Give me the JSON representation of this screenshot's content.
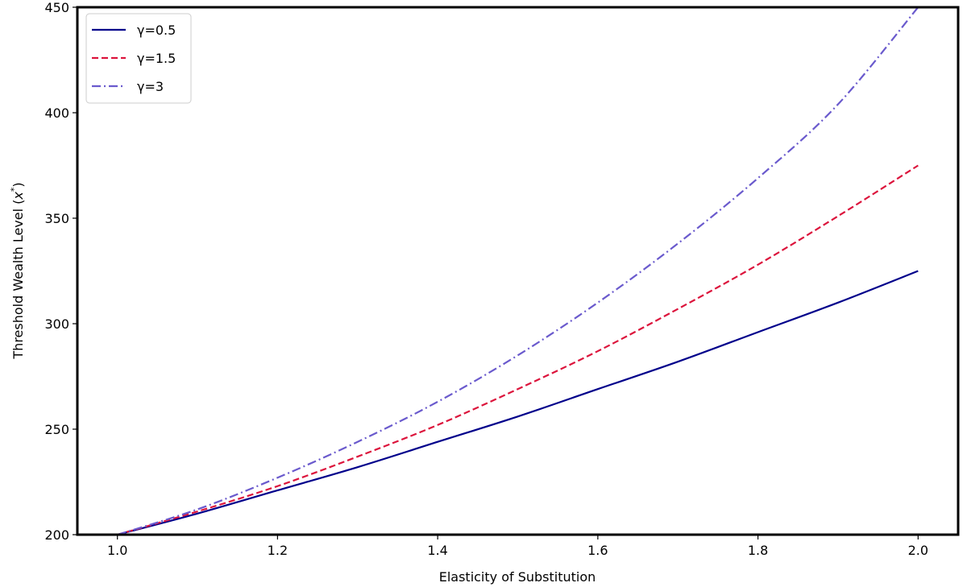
{
  "chart_data": {
    "type": "line",
    "xlabel": "Elasticity of Substitution",
    "ylabel": "Threshold Wealth Level ($x^{*}$)",
    "xlim": [
      0.95,
      2.05
    ],
    "ylim": [
      200,
      450
    ],
    "xticks": [
      "1.0",
      "1.2",
      "1.4",
      "1.6",
      "1.8",
      "2.0"
    ],
    "yticks": [
      "200",
      "250",
      "300",
      "350",
      "400",
      "450"
    ],
    "grid": false,
    "legend_position": "top-left",
    "x": [
      1.0,
      1.1,
      1.2,
      1.3,
      1.4,
      1.5,
      1.6,
      1.7,
      1.8,
      1.9,
      2.0
    ],
    "series": [
      {
        "name": "γ=0.5",
        "line_style": "solid",
        "color": "#00008b",
        "values": [
          200,
          210,
          221,
          232,
          244,
          256,
          269,
          282,
          296,
          310,
          325
        ]
      },
      {
        "name": "γ=1.5",
        "line_style": "dashed",
        "color": "#dc143c",
        "values": [
          200,
          211,
          223,
          237,
          252,
          269,
          287,
          307,
          328,
          351,
          375
        ]
      },
      {
        "name": "γ=3",
        "line_style": "dashdot",
        "color": "#6a5acd",
        "values": [
          200,
          212,
          227,
          244,
          263,
          285,
          310,
          338,
          369,
          404,
          450
        ]
      }
    ]
  }
}
